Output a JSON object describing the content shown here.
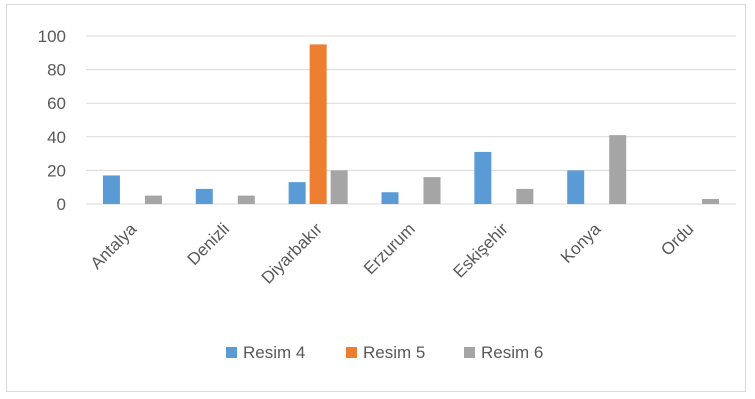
{
  "chart_data": {
    "type": "bar",
    "title": "",
    "xlabel": "",
    "ylabel": "",
    "ylim": [
      0,
      100
    ],
    "yticks": [
      0,
      20,
      40,
      60,
      80,
      100
    ],
    "grid": true,
    "legend_position": "bottom",
    "categories": [
      "Antalya",
      "Denizli",
      "Diyarbakır",
      "Erzurum",
      "Eskişehir",
      "Konya",
      "Ordu"
    ],
    "series": [
      {
        "name": "Resim 4",
        "color": "#5b9bd5",
        "values": [
          17,
          9,
          13,
          7,
          31,
          20,
          0
        ]
      },
      {
        "name": "Resim 5",
        "color": "#ed7d31",
        "values": [
          0,
          0,
          95,
          0,
          0,
          0,
          0
        ]
      },
      {
        "name": "Resim 6",
        "color": "#a5a5a5",
        "values": [
          5,
          5,
          20,
          16,
          9,
          41,
          3
        ]
      }
    ]
  }
}
